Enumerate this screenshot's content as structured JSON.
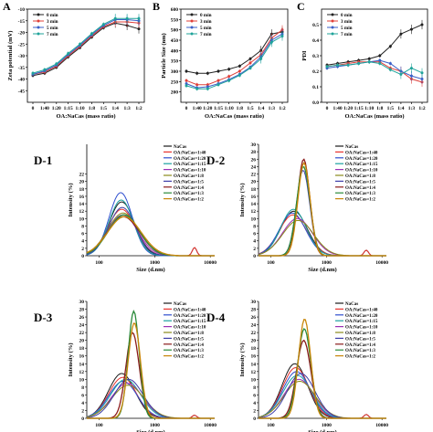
{
  "chart_data": [
    {
      "panel": "A",
      "type": "line",
      "ylabel": "Zeta potential (mV)",
      "xlabel": "OA:NaCas (mass ratio)",
      "categories": [
        "0",
        "1:40",
        "1:20",
        "1:15",
        "1:10",
        "1:8",
        "1:5",
        "1:4",
        "1:3",
        "1:2"
      ],
      "ylim": [
        -50,
        -10
      ],
      "yticks": [
        -45,
        -40,
        -35,
        -30,
        -25,
        -20,
        -15,
        -10
      ],
      "legend_position": "top-left",
      "series": [
        {
          "name": "0 min",
          "color": "#222222",
          "values": [
            -38.5,
            -37.5,
            -35.0,
            -30.5,
            -26.5,
            -22.0,
            -18.0,
            -16.0,
            -17.0,
            -18.5
          ]
        },
        {
          "name": "3 min",
          "color": "#e0403a",
          "values": [
            -38.0,
            -37.0,
            -34.5,
            -30.0,
            -26.0,
            -21.5,
            -17.5,
            -15.5,
            -15.5,
            -16.0
          ]
        },
        {
          "name": "5 min",
          "color": "#3a5fc8",
          "values": [
            -38.0,
            -36.5,
            -34.0,
            -29.5,
            -25.5,
            -21.0,
            -17.0,
            -14.5,
            -14.5,
            -15.0
          ]
        },
        {
          "name": "7 min",
          "color": "#1fa39a",
          "values": [
            -37.5,
            -36.0,
            -33.5,
            -29.0,
            -25.0,
            -20.5,
            -16.5,
            -14.0,
            -14.0,
            -14.0
          ]
        }
      ]
    },
    {
      "panel": "B",
      "type": "line",
      "ylabel": "Particle Size (nm)",
      "xlabel": "OA:NaCas (mass ratio)",
      "categories": [
        "0",
        "1:40",
        "1:20",
        "1:15",
        "1:10",
        "1:8",
        "1:5",
        "1:4",
        "1:3",
        "1:2"
      ],
      "ylim": [
        150,
        600
      ],
      "yticks": [
        200,
        250,
        300,
        350,
        400,
        450,
        500,
        550,
        600
      ],
      "legend_position": "top-left",
      "series": [
        {
          "name": "0 min",
          "color": "#222222",
          "values": [
            300,
            290,
            290,
            300,
            310,
            325,
            360,
            400,
            480,
            490
          ]
        },
        {
          "name": "3 min",
          "color": "#e0403a",
          "values": [
            255,
            235,
            235,
            255,
            275,
            300,
            340,
            380,
            460,
            500
          ]
        },
        {
          "name": "5 min",
          "color": "#3a5fc8",
          "values": [
            240,
            220,
            225,
            240,
            260,
            285,
            320,
            370,
            450,
            480
          ]
        },
        {
          "name": "7 min",
          "color": "#1fa39a",
          "values": [
            230,
            215,
            215,
            235,
            255,
            280,
            315,
            360,
            440,
            470
          ]
        }
      ]
    },
    {
      "panel": "C",
      "type": "line",
      "ylabel": "PDI",
      "xlabel": "OA:NaCas (mass ratio)",
      "categories": [
        "0",
        "1:40",
        "1:20",
        "1:15",
        "1:10",
        "1:8",
        "1:5",
        "1:4",
        "1:3",
        "1:2"
      ],
      "ylim": [
        0.0,
        0.6
      ],
      "yticks": [
        0.0,
        0.1,
        0.2,
        0.3,
        0.4,
        0.5
      ],
      "legend_position": "top-left",
      "series": [
        {
          "name": "0 min",
          "color": "#222222",
          "values": [
            0.24,
            0.25,
            0.26,
            0.27,
            0.28,
            0.3,
            0.36,
            0.44,
            0.47,
            0.5
          ]
        },
        {
          "name": "3 min",
          "color": "#e0403a",
          "values": [
            0.23,
            0.24,
            0.25,
            0.26,
            0.26,
            0.26,
            0.22,
            0.2,
            0.15,
            0.13
          ]
        },
        {
          "name": "5 min",
          "color": "#3a5fc8",
          "values": [
            0.22,
            0.23,
            0.24,
            0.25,
            0.26,
            0.27,
            0.25,
            0.2,
            0.17,
            0.15
          ]
        },
        {
          "name": "7 min",
          "color": "#1fa39a",
          "values": [
            0.23,
            0.24,
            0.24,
            0.25,
            0.26,
            0.25,
            0.21,
            0.18,
            0.22,
            0.19
          ]
        }
      ]
    }
  ],
  "panel_letters": {
    "a": "A",
    "b": "B",
    "c": "C"
  },
  "dls": {
    "ylabel": "Intensity (%)",
    "xlabel": "Size (d.nm)",
    "xticks": [
      "100",
      "1000",
      "10000"
    ],
    "legend": [
      {
        "name": "NaCas",
        "color": "#1a1a1a"
      },
      {
        "name": "OA:NaCas=1:40",
        "color": "#e8332f"
      },
      {
        "name": "OA:NaCas=1:20",
        "color": "#2f4fcf"
      },
      {
        "name": "OA:NaCas=1:15",
        "color": "#1aa0a0"
      },
      {
        "name": "OA:NaCas=1:10",
        "color": "#9b2fb5"
      },
      {
        "name": "OA:NaCas=1:8",
        "color": "#8a8a1a"
      },
      {
        "name": "OA:NaCas=1:5",
        "color": "#3f3fa8"
      },
      {
        "name": "OA:NaCas=1:4",
        "color": "#8b1a1a"
      },
      {
        "name": "OA:NaCas=1:3",
        "color": "#2a8a3a"
      },
      {
        "name": "OA:NaCas=1:2",
        "color": "#c8860a"
      }
    ],
    "panels": [
      {
        "id": "D-1",
        "ylim": [
          0,
          30
        ],
        "yticks": [
          0,
          2,
          4,
          6,
          8,
          10,
          12,
          14,
          16,
          18,
          20,
          22
        ],
        "peaks": [
          {
            "center": 255,
            "height": 14.5,
            "width": 0.23
          },
          {
            "center": 255,
            "height": 12.5,
            "width": 0.25
          },
          {
            "center": 245,
            "height": 17.0,
            "width": 0.21
          },
          {
            "center": 250,
            "height": 15.0,
            "width": 0.22
          },
          {
            "center": 265,
            "height": 11.0,
            "width": 0.27
          },
          {
            "center": 270,
            "height": 11.5,
            "width": 0.28
          },
          {
            "center": 260,
            "height": 13.0,
            "width": 0.24
          },
          {
            "center": 275,
            "height": 10.5,
            "width": 0.29
          },
          {
            "center": 280,
            "height": 11.0,
            "width": 0.28
          },
          {
            "center": 285,
            "height": 10.5,
            "width": 0.3
          }
        ],
        "side_peak": {
          "center": 5200,
          "height": 2.2
        }
      },
      {
        "id": "D-2",
        "ylim": [
          0,
          30
        ],
        "yticks": [
          0,
          2,
          4,
          6,
          8,
          10,
          12,
          14,
          16,
          18,
          20,
          22,
          24,
          26,
          28,
          30
        ],
        "peaks": [
          {
            "center": 260,
            "height": 12.0,
            "width": 0.24
          },
          {
            "center": 250,
            "height": 11.0,
            "width": 0.25
          },
          {
            "center": 245,
            "height": 11.5,
            "width": 0.24
          },
          {
            "center": 255,
            "height": 12.5,
            "width": 0.23
          },
          {
            "center": 300,
            "height": 10.0,
            "width": 0.27
          },
          {
            "center": 310,
            "height": 9.5,
            "width": 0.28
          },
          {
            "center": 380,
            "height": 23.0,
            "width": 0.12
          },
          {
            "center": 390,
            "height": 26.0,
            "width": 0.11
          },
          {
            "center": 385,
            "height": 24.0,
            "width": 0.12
          },
          {
            "center": 395,
            "height": 25.0,
            "width": 0.11
          }
        ],
        "side_peak": {
          "center": 5200,
          "height": 1.5
        }
      },
      {
        "id": "D-3",
        "ylim": [
          0,
          30
        ],
        "yticks": [
          0,
          2,
          4,
          6,
          8,
          10,
          12,
          14,
          16,
          18,
          20,
          22,
          24,
          26,
          28,
          30
        ],
        "peaks": [
          {
            "center": 255,
            "height": 11.5,
            "width": 0.24
          },
          {
            "center": 265,
            "height": 10.5,
            "width": 0.25
          },
          {
            "center": 270,
            "height": 9.5,
            "width": 0.26
          },
          {
            "center": 300,
            "height": 10.0,
            "width": 0.27
          },
          {
            "center": 320,
            "height": 9.0,
            "width": 0.28
          },
          {
            "center": 330,
            "height": 8.5,
            "width": 0.29
          },
          {
            "center": 340,
            "height": 10.0,
            "width": 0.26
          },
          {
            "center": 400,
            "height": 22.0,
            "width": 0.12
          },
          {
            "center": 420,
            "height": 27.5,
            "width": 0.1
          },
          {
            "center": 430,
            "height": 24.5,
            "width": 0.11
          }
        ],
        "side_peak": {
          "center": 5200,
          "height": 0.8
        }
      },
      {
        "id": "D-4",
        "ylim": [
          0,
          30
        ],
        "yticks": [
          0,
          2,
          4,
          6,
          8,
          10,
          12,
          14,
          16,
          18,
          20,
          22,
          24,
          26,
          28,
          30
        ],
        "peaks": [
          {
            "center": 270,
            "height": 14.0,
            "width": 0.23
          },
          {
            "center": 280,
            "height": 13.0,
            "width": 0.24
          },
          {
            "center": 290,
            "height": 12.0,
            "width": 0.25
          },
          {
            "center": 300,
            "height": 11.0,
            "width": 0.26
          },
          {
            "center": 320,
            "height": 10.0,
            "width": 0.27
          },
          {
            "center": 330,
            "height": 9.5,
            "width": 0.28
          },
          {
            "center": 350,
            "height": 11.5,
            "width": 0.25
          },
          {
            "center": 390,
            "height": 20.0,
            "width": 0.13
          },
          {
            "center": 400,
            "height": 23.0,
            "width": 0.12
          },
          {
            "center": 405,
            "height": 25.5,
            "width": 0.11
          }
        ],
        "side_peak": {
          "center": 5200,
          "height": 1.0
        }
      }
    ]
  }
}
